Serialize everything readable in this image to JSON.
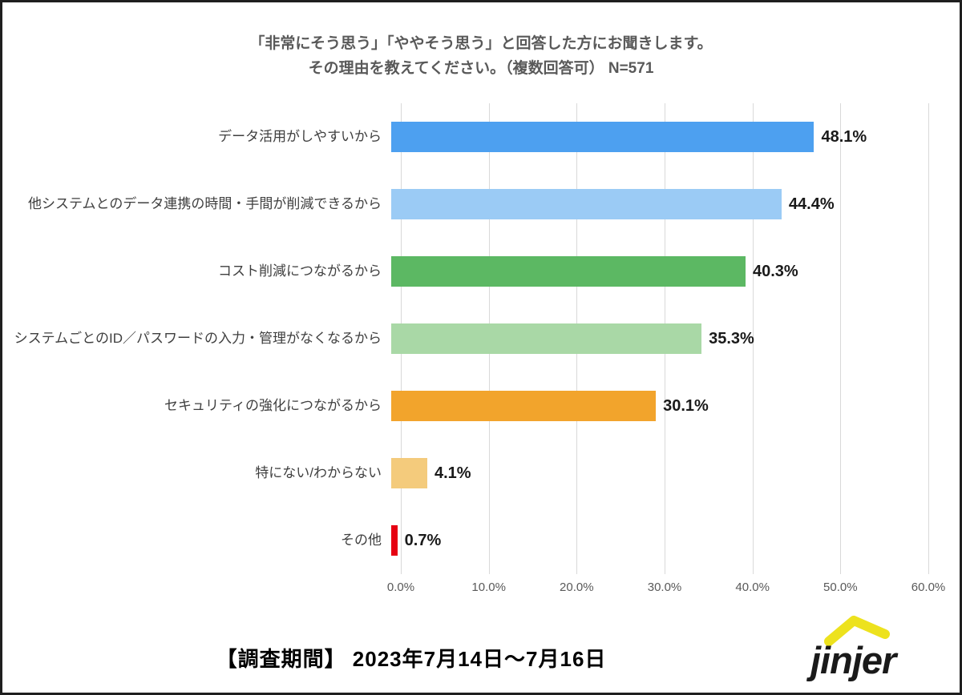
{
  "title": {
    "line1": "「非常にそう思う」「ややそう思う」と回答した方にお聞きします。",
    "line2": "その理由を教えてください。（複数回答可） N=571"
  },
  "chart_data": {
    "type": "bar",
    "orientation": "horizontal",
    "title": "「非常にそう思う」「ややそう思う」と回答した方にお聞きします。その理由を教えてください。（複数回答可） N=571",
    "sample_size": "N=571",
    "categories": [
      "データ活用がしやすいから",
      "他システムとのデータ連携の時間・手間が削減できるから",
      "コスト削減につながるから",
      "システムごとのID／パスワードの入力・管理がなくなるから",
      "セキュリティの強化につながるから",
      "特にない/わからない",
      "その他"
    ],
    "values": [
      48.1,
      44.4,
      40.3,
      35.3,
      30.1,
      4.1,
      0.7
    ],
    "value_labels": [
      "48.1%",
      "44.4%",
      "40.3%",
      "35.3%",
      "30.1%",
      "4.1%",
      "0.7%"
    ],
    "bar_colors": [
      "#4da0f0",
      "#9bcbf5",
      "#5cb863",
      "#a9d8a6",
      "#f2a42c",
      "#f4cb7c",
      "#e60012"
    ],
    "x_ticks": [
      "0.0%",
      "10.0%",
      "20.0%",
      "30.0%",
      "40.0%",
      "50.0%",
      "60.0%"
    ],
    "xlim": [
      0,
      60
    ],
    "grid": true,
    "gridline_color": "#d9d9d9",
    "legend": "none"
  },
  "footer": {
    "survey_period": "【調査期間】 2023年7月14日～7月16日",
    "logo_text": "jinjer"
  },
  "colors": {
    "title_text": "#595959",
    "category_text": "#3f3f3f",
    "value_text": "#1a1a1a",
    "tick_text": "#595959",
    "frame_border": "#1f1f1f",
    "logo_yellow": "#ede21e",
    "logo_black": "#1a1a1a"
  }
}
